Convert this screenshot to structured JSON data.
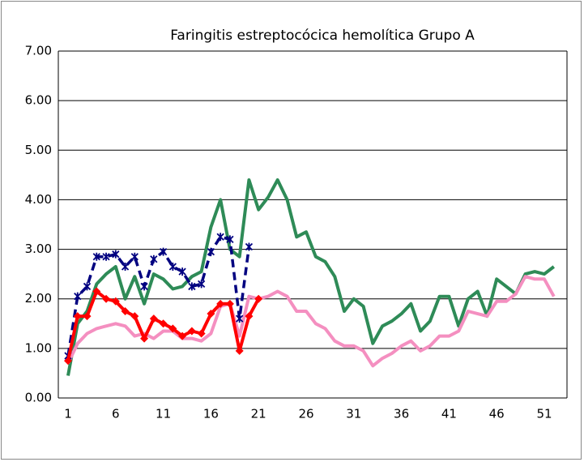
{
  "chart_data": {
    "type": "line",
    "title": "Faringitis estreptocócica hemolítica Grupo A",
    "categories": [
      1,
      null,
      null,
      null,
      null,
      6,
      null,
      null,
      null,
      null,
      11,
      null,
      null,
      null,
      null,
      16,
      null,
      null,
      null,
      null,
      21,
      null,
      null,
      null,
      null,
      26,
      null,
      null,
      null,
      null,
      31,
      null,
      null,
      null,
      null,
      36,
      null,
      null,
      null,
      null,
      41,
      null,
      null,
      null,
      null,
      46,
      null,
      null,
      null,
      null,
      51,
      null
    ],
    "series": [
      {
        "color": "#2e8b57",
        "values": [
          0.45,
          1.5,
          1.75,
          2.3,
          2.5,
          2.65,
          2.0,
          2.45,
          1.9,
          2.5,
          2.4,
          2.2,
          2.25,
          2.45,
          2.55,
          3.45,
          4.0,
          3.0,
          2.85,
          4.4,
          3.8,
          4.05,
          4.4,
          4.0,
          3.25,
          3.35,
          2.85,
          2.75,
          2.45,
          1.75,
          2.0,
          1.85,
          1.1,
          1.45,
          1.55,
          1.7,
          1.9,
          1.35,
          1.55,
          2.05,
          2.05,
          1.45,
          2.0,
          2.15,
          1.65,
          2.4,
          2.25,
          2.1,
          2.5,
          2.55,
          2.5,
          2.65
        ]
      },
      {
        "color": "#f48fc0",
        "values": [
          0.7,
          1.1,
          1.3,
          1.4,
          1.45,
          1.5,
          1.45,
          1.25,
          1.3,
          1.2,
          1.35,
          1.35,
          1.2,
          1.2,
          1.15,
          1.3,
          1.85,
          1.9,
          1.25,
          2.05,
          2.0,
          2.05,
          2.15,
          2.05,
          1.75,
          1.75,
          1.5,
          1.4,
          1.15,
          1.05,
          1.05,
          0.95,
          0.65,
          0.8,
          0.9,
          1.05,
          1.15,
          0.95,
          1.05,
          1.25,
          1.25,
          1.35,
          1.75,
          1.7,
          1.65,
          1.95,
          1.95,
          2.1,
          2.45,
          2.4,
          2.4,
          2.05
        ]
      },
      {
        "color": "#000080",
        "dash": true,
        "marker": "asterisk",
        "values": [
          0.85,
          2.05,
          2.25,
          2.85,
          2.85,
          2.9,
          2.65,
          2.85,
          2.25,
          2.8,
          2.95,
          2.65,
          2.55,
          2.25,
          2.3,
          2.95,
          3.25,
          3.2,
          1.6,
          3.05,
          null,
          null,
          null,
          null,
          null,
          null,
          null,
          null,
          null,
          null,
          null,
          null,
          null,
          null,
          null,
          null,
          null,
          null,
          null,
          null,
          null,
          null,
          null,
          null,
          null,
          null,
          null,
          null,
          null,
          null,
          null,
          null
        ]
      },
      {
        "color": "#ff0000",
        "marker": "diamond",
        "values": [
          0.75,
          1.65,
          1.65,
          2.15,
          2.0,
          1.95,
          1.75,
          1.65,
          1.2,
          1.6,
          1.5,
          1.4,
          1.25,
          1.35,
          1.3,
          1.7,
          1.9,
          1.9,
          0.95,
          1.65,
          2.0,
          null,
          null,
          null,
          null,
          null,
          null,
          null,
          null,
          null,
          null,
          null,
          null,
          null,
          null,
          null,
          null,
          null,
          null,
          null,
          null,
          null,
          null,
          null,
          null,
          null,
          null,
          null,
          null,
          null,
          null,
          null
        ]
      }
    ],
    "ylim": [
      0,
      7
    ],
    "yticks": [
      {
        "value": 0,
        "label": "0.00"
      },
      {
        "value": 1,
        "label": "1.00"
      },
      {
        "value": 2,
        "label": "2.00"
      },
      {
        "value": 3,
        "label": "3.00"
      },
      {
        "value": 4,
        "label": "4.00"
      },
      {
        "value": 5,
        "label": "5.00"
      },
      {
        "value": 6,
        "label": "6.00"
      },
      {
        "value": 7,
        "label": "7.00"
      }
    ],
    "grid": true
  }
}
